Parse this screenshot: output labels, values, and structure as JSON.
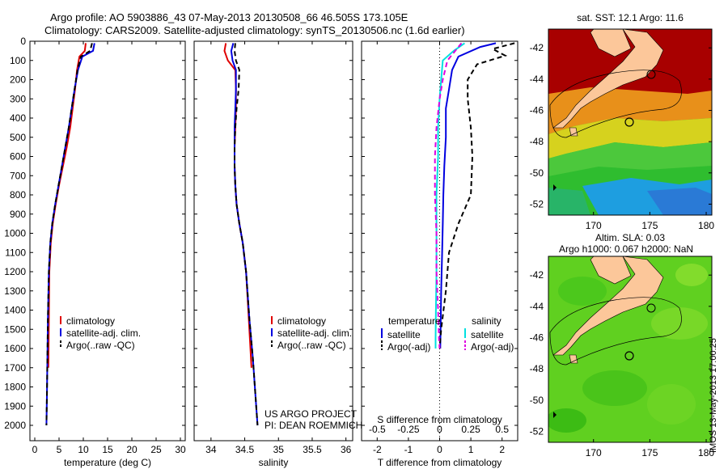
{
  "header": {
    "line1": "Argo profile: AO 5903886_43 07-May-2013 20130508_66 46.505S 173.105E",
    "line2": "Climatology: CARS2009. Satellite-adjusted climatology: synTS_20130506.nc (1.6d earlier)"
  },
  "footer": {
    "stamp": "IMOS 13-May-2013 17:00:25",
    "project": "US ARGO PROJECT",
    "pi": "PI: DEAN ROEMMICH"
  },
  "colors": {
    "climatology": "#e00000",
    "satellite": "#0000e0",
    "argo": "#000000",
    "cyan": "#00e0e0",
    "magenta": "#e000e0",
    "land": "#fcc79a"
  },
  "chart_data": [
    {
      "id": "temperature",
      "type": "line",
      "xlabel": "temperature (deg C)",
      "ylabel": "",
      "xlim": [
        -1,
        31
      ],
      "ylim": [
        2080,
        0
      ],
      "y_reversed": true,
      "xticks": [
        0,
        5,
        10,
        15,
        20,
        25,
        30
      ],
      "yticks": [
        0,
        100,
        200,
        300,
        400,
        500,
        600,
        700,
        800,
        900,
        1000,
        1100,
        1200,
        1300,
        1400,
        1500,
        1600,
        1700,
        1800,
        1900,
        2000
      ],
      "legend": [
        "climatology",
        "satellite-adj. clim.",
        "Argo(..raw -QC)"
      ],
      "legend_position": "lower-center",
      "series": [
        {
          "name": "climatology",
          "color": "#e00000",
          "style": "solid",
          "x": [
            10.5,
            10.3,
            9.2,
            8.7,
            8.3,
            7.8,
            7.3,
            6.6,
            5.8,
            5.0,
            4.3,
            3.7,
            3.3,
            3.0,
            2.9,
            2.8
          ],
          "y": [
            10,
            50,
            80,
            150,
            250,
            350,
            450,
            550,
            650,
            750,
            850,
            950,
            1050,
            1200,
            1450,
            1700
          ]
        },
        {
          "name": "satellite-adj. clim.",
          "color": "#0000e0",
          "style": "solid",
          "x": [
            12.3,
            12.0,
            9.8,
            8.9,
            8.2,
            7.6,
            7.0,
            6.3,
            5.6,
            4.9,
            4.2,
            3.6,
            3.2,
            2.9,
            2.7,
            2.6,
            2.5,
            2.4
          ],
          "y": [
            10,
            50,
            80,
            150,
            250,
            350,
            450,
            550,
            650,
            750,
            850,
            950,
            1050,
            1200,
            1450,
            1650,
            1850,
            2000
          ]
        },
        {
          "name": "Argo(..raw -QC)",
          "color": "#000000",
          "style": "dashed",
          "x": [
            11.8,
            11.4,
            9.5,
            8.8,
            8.2,
            7.6,
            7.0,
            6.3,
            5.6,
            4.9,
            4.2,
            3.6,
            3.2,
            2.9,
            2.7,
            2.6,
            2.5,
            2.4
          ],
          "y": [
            10,
            50,
            80,
            150,
            250,
            350,
            450,
            550,
            650,
            750,
            850,
            950,
            1050,
            1200,
            1450,
            1650,
            1850,
            2000
          ]
        }
      ]
    },
    {
      "id": "salinity",
      "type": "line",
      "xlabel": "salinity",
      "ylabel": "",
      "xlim": [
        33.75,
        36.1
      ],
      "ylim": [
        2080,
        0
      ],
      "y_reversed": true,
      "xticks": [
        34,
        34.5,
        35,
        35.5,
        36
      ],
      "legend": [
        "climatology",
        "satellite-adj. clim.",
        "Argo(..raw -QC)"
      ],
      "legend_position": "lower-center",
      "series": [
        {
          "name": "climatology",
          "color": "#e00000",
          "style": "solid",
          "x": [
            34.22,
            34.2,
            34.25,
            34.36,
            34.37,
            34.37,
            34.36,
            34.35,
            34.35,
            34.36,
            34.38,
            34.42,
            34.47,
            34.52,
            34.56,
            34.6
          ],
          "y": [
            10,
            50,
            100,
            150,
            250,
            350,
            450,
            550,
            650,
            750,
            850,
            950,
            1050,
            1200,
            1450,
            1700
          ]
        },
        {
          "name": "satellite-adj. clim.",
          "color": "#0000e0",
          "style": "solid",
          "x": [
            34.33,
            34.3,
            34.32,
            34.37,
            34.37,
            34.36,
            34.35,
            34.35,
            34.35,
            34.36,
            34.38,
            34.42,
            34.47,
            34.52,
            34.57,
            34.62,
            34.66,
            34.69
          ],
          "y": [
            10,
            50,
            100,
            150,
            250,
            350,
            450,
            550,
            650,
            750,
            850,
            950,
            1050,
            1200,
            1450,
            1650,
            1850,
            2000
          ]
        },
        {
          "name": "Argo(..raw -QC)",
          "color": "#000000",
          "style": "dashed",
          "x": [
            34.36,
            34.35,
            34.37,
            34.42,
            34.41,
            34.38,
            34.36,
            34.35,
            34.35,
            34.36,
            34.38,
            34.42,
            34.47,
            34.52,
            34.57,
            34.62,
            34.66,
            34.69
          ],
          "y": [
            10,
            50,
            100,
            150,
            250,
            350,
            450,
            550,
            650,
            750,
            850,
            950,
            1050,
            1200,
            1450,
            1650,
            1850,
            2000
          ]
        }
      ]
    },
    {
      "id": "difference",
      "type": "line",
      "xlabel": "T difference from climatology",
      "xlabel_top": "S difference from climatology",
      "xlim": [
        -2.5,
        2.5
      ],
      "ylim": [
        2080,
        0
      ],
      "y_reversed": true,
      "xticks": [
        -2,
        -1,
        0,
        1,
        2
      ],
      "xticks_top": [
        -0.5,
        -0.25,
        0,
        0.25,
        0.5
      ],
      "legend": [
        "temperature",
        "satellite",
        "Argo(-adj)",
        "salinity",
        "satellite",
        "Argo(-adj)"
      ],
      "legend_position": "lower-center",
      "series": [
        {
          "name": "satellite",
          "color": "#0000e0",
          "style": "solid",
          "x": [
            1.8,
            1.3,
            0.6,
            0.4,
            0.3,
            0.2,
            0.2,
            0.15,
            0.12,
            0.1,
            0.08,
            0.05,
            0.03,
            0.02
          ],
          "y": [
            10,
            30,
            80,
            150,
            250,
            350,
            500,
            650,
            800,
            950,
            1100,
            1300,
            1500,
            1600
          ]
        },
        {
          "name": "Argo(-adj)",
          "color": "#000000",
          "style": "dashed",
          "x": [
            2.4,
            1.7,
            2.1,
            1.2,
            0.9,
            0.9,
            1.0,
            1.05,
            1.0,
            0.6,
            0.3,
            0.2,
            0.05,
            0.0
          ],
          "y": [
            10,
            40,
            75,
            120,
            200,
            300,
            450,
            600,
            800,
            950,
            1100,
            1300,
            1500,
            1600
          ]
        },
        {
          "name": "satellite",
          "color": "#00e0e0",
          "style": "solid",
          "x": [
            0.8,
            0.45,
            0.1,
            0.05,
            0.0,
            -0.05,
            -0.05,
            -0.1,
            -0.1,
            -0.1,
            -0.12,
            -0.13,
            -0.13
          ],
          "y": [
            10,
            50,
            100,
            200,
            300,
            450,
            600,
            800,
            1000,
            1200,
            1400,
            1550,
            1600
          ]
        },
        {
          "name": "Argo(-adj)",
          "color": "#e000e0",
          "style": "dashed",
          "x": [
            0.7,
            0.5,
            0.25,
            0.1,
            0.0,
            -0.1,
            -0.15,
            -0.15,
            -0.1,
            -0.1,
            -0.05,
            -0.02,
            0.0
          ],
          "y": [
            10,
            50,
            100,
            200,
            300,
            450,
            600,
            800,
            1000,
            1200,
            1400,
            1550,
            1600
          ]
        }
      ]
    },
    {
      "id": "sst-map",
      "type": "heatmap",
      "title": "sat. SST: 12.1 Argo: 11.6",
      "xlim": [
        166,
        180.5
      ],
      "ylim": [
        -52.7,
        -40.8
      ],
      "xticks": [
        170,
        175,
        180
      ],
      "yticks": [
        -42,
        -44,
        -46,
        -48,
        -50,
        -52
      ],
      "marker": {
        "lon": 173.1,
        "lat": -46.5
      }
    },
    {
      "id": "sla-map",
      "type": "heatmap",
      "title": "Altim. SLA: 0.03",
      "subtitle": "Argo h1000: 0.067 h2000: NaN",
      "xlim": [
        166,
        180.5
      ],
      "ylim": [
        -52.7,
        -40.8
      ],
      "xticks": [
        170,
        175,
        180
      ],
      "yticks": [
        -42,
        -44,
        -46,
        -48,
        -50,
        -52
      ],
      "marker": {
        "lon": 173.1,
        "lat": -46.5
      }
    }
  ]
}
